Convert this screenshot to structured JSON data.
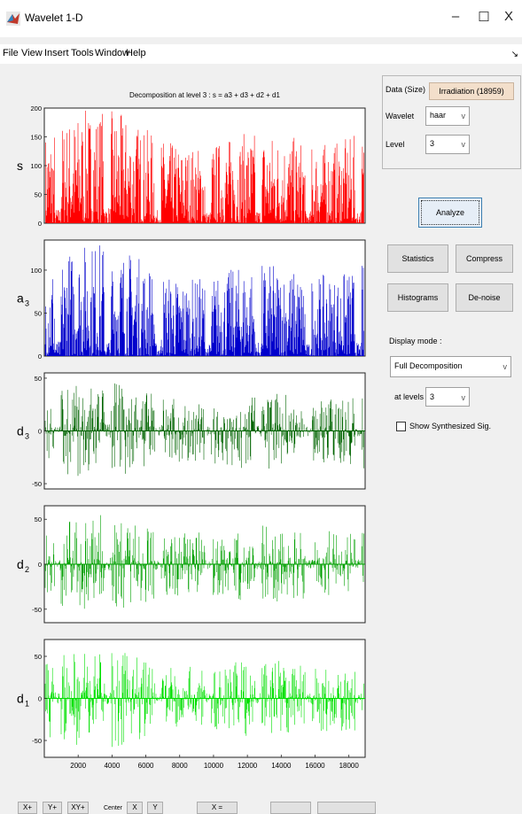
{
  "window": {
    "title": "Wavelet 1-D",
    "minimize": "–",
    "maximize": "☐",
    "close": "X"
  },
  "menu": [
    "File",
    "View",
    "Insert",
    "Tools",
    "Window",
    "Help"
  ],
  "menu_arrow": "↘",
  "plot": {
    "title": "Decomposition at level 3 : s = a3 + d3 + d2 + d1",
    "x_ticks": [
      "2000",
      "4000",
      "6000",
      "8000",
      "10000",
      "12000",
      "14000",
      "16000",
      "18000"
    ]
  },
  "chart_data": {
    "type": "line",
    "title": "Decomposition at level 3 : s = a3 + d3 + d2 + d1",
    "x_range": [
      0,
      18959
    ],
    "x_ticks": [
      2000,
      4000,
      6000,
      8000,
      10000,
      12000,
      14000,
      16000,
      18000
    ],
    "series": [
      {
        "name": "s",
        "color": "#ff0000",
        "ylim": [
          0,
          200
        ],
        "y_ticks": [
          0,
          50,
          100,
          150,
          200
        ]
      },
      {
        "name": "a3",
        "color": "#0000cc",
        "ylim": [
          0,
          135
        ],
        "y_ticks": [
          0,
          50,
          100
        ]
      },
      {
        "name": "d3",
        "color": "#006400",
        "ylim": [
          -55,
          55
        ],
        "y_ticks": [
          -50,
          0,
          50
        ]
      },
      {
        "name": "d2",
        "color": "#00a000",
        "ylim": [
          -65,
          65
        ],
        "y_ticks": [
          -50,
          0,
          50
        ]
      },
      {
        "name": "d1",
        "color": "#00e000",
        "ylim": [
          -70,
          70
        ],
        "y_ticks": [
          -50,
          0,
          50
        ]
      }
    ]
  },
  "panel": {
    "data_label": "Data  (Size)",
    "data_value": "Irradiation  (18959)",
    "wavelet_label": "Wavelet",
    "wavelet_value": "haar",
    "level_label": "Level",
    "level_value": "3"
  },
  "buttons": {
    "analyze": "Analyze",
    "statistics": "Statistics",
    "compress": "Compress",
    "histograms": "Histograms",
    "denoise": "De-noise"
  },
  "display": {
    "mode_label": "Display mode :",
    "mode_value": "Full Decomposition",
    "levels_label": "at levels",
    "levels_value": "3",
    "show_synth": "Show Synthesized Sig."
  },
  "toolbar": [
    "X+",
    "Y+",
    "XY+",
    "Center",
    "X",
    "Y",
    "X ="
  ],
  "icons": {
    "chevron": "v"
  }
}
